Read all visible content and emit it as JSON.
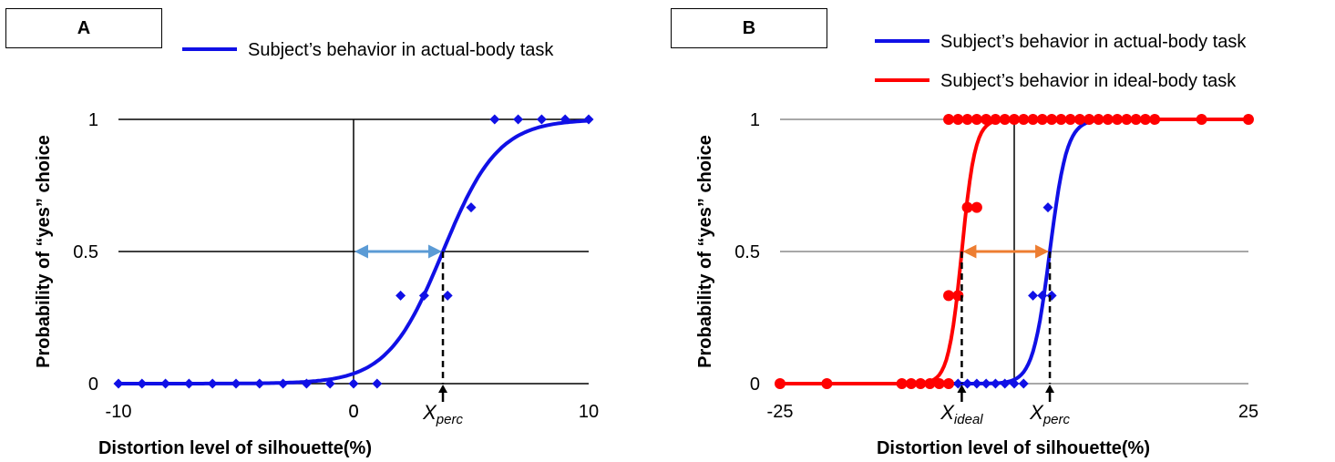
{
  "chart_data": [
    {
      "panel": "A",
      "type": "scatter",
      "ylabel": "Probability of “yes” choice",
      "xlabel": "Distortion level of silhouette(%)",
      "xlim": [
        -10,
        10
      ],
      "ylim": [
        0,
        1
      ],
      "x_ticks": [
        "-10",
        "0",
        "10"
      ],
      "y_ticks": [
        "0",
        "0.5",
        "1"
      ],
      "grid": true,
      "legend_position": "top",
      "series": [
        {
          "name": "Subject’s behavior in actual-body task",
          "color": "#1010e6",
          "marker": "diamond",
          "points": [
            [
              -10,
              0
            ],
            [
              -9,
              0
            ],
            [
              -8,
              0
            ],
            [
              -7,
              0
            ],
            [
              -6,
              0
            ],
            [
              -5,
              0
            ],
            [
              -4,
              0
            ],
            [
              -3,
              0
            ],
            [
              -2,
              0
            ],
            [
              -1,
              0
            ],
            [
              0,
              0
            ],
            [
              1,
              0
            ],
            [
              2,
              0.333
            ],
            [
              3,
              0.333
            ],
            [
              4,
              0.333
            ],
            [
              5,
              0.667
            ],
            [
              6,
              1
            ],
            [
              7,
              1
            ],
            [
              8,
              1
            ],
            [
              9,
              1
            ],
            [
              10,
              1
            ]
          ],
          "fit": {
            "center": 3.8,
            "slope": 0.85
          }
        }
      ],
      "annotations": {
        "arrow": {
          "from": 0,
          "to": 3.8,
          "y": 0.5,
          "color": "#5b9bd5"
        },
        "marker_label": {
          "base": "X",
          "sub": "perc",
          "x": 3.8
        }
      }
    },
    {
      "panel": "B",
      "type": "scatter",
      "ylabel": "Probability of “yes” choice",
      "xlabel": "Distortion level of silhouette(%)",
      "xlim": [
        -25,
        25
      ],
      "ylim": [
        0,
        1
      ],
      "x_ticks": [
        "-25",
        "25"
      ],
      "y_ticks": [
        "0",
        "0.5",
        "1"
      ],
      "grid": true,
      "legend_position": "top",
      "series": [
        {
          "name": "Subject’s behavior in actual-body task",
          "color": "#1010e6",
          "marker": "diamond",
          "points": [
            [
              -7,
              0
            ],
            [
              -6,
              0
            ],
            [
              -5,
              0
            ],
            [
              -4,
              0
            ],
            [
              -3,
              0
            ],
            [
              -2,
              0
            ],
            [
              -1,
              0
            ],
            [
              0,
              0
            ],
            [
              1,
              0
            ],
            [
              2,
              0.333
            ],
            [
              3,
              0.333
            ],
            [
              4,
              0.333
            ],
            [
              3.6,
              0.667
            ],
            [
              2,
              1
            ],
            [
              3,
              1
            ],
            [
              4,
              1
            ],
            [
              5,
              1
            ],
            [
              6,
              1
            ],
            [
              7,
              1
            ],
            [
              8,
              1
            ],
            [
              9,
              1
            ],
            [
              10,
              1
            ]
          ],
          "fit": {
            "center": 3.8,
            "slope": 1.1
          }
        },
        {
          "name": "Subject’s behavior in ideal-body task",
          "color": "#ff0000",
          "marker": "circle",
          "points": [
            [
              -25,
              0
            ],
            [
              -20,
              0
            ],
            [
              -12,
              0
            ],
            [
              -11,
              0
            ],
            [
              -10,
              0
            ],
            [
              -9,
              0
            ],
            [
              -8,
              0
            ],
            [
              -7,
              0
            ],
            [
              -7,
              0.333
            ],
            [
              -6,
              0.333
            ],
            [
              -5,
              0.667
            ],
            [
              -4,
              0.667
            ],
            [
              -7,
              1
            ],
            [
              -6,
              1
            ],
            [
              -5,
              1
            ],
            [
              -4,
              1
            ],
            [
              -3,
              1
            ],
            [
              -2,
              1
            ],
            [
              -1,
              1
            ],
            [
              0,
              1
            ],
            [
              1,
              1
            ],
            [
              2,
              1
            ],
            [
              3,
              1
            ],
            [
              4,
              1
            ],
            [
              5,
              1
            ],
            [
              6,
              1
            ],
            [
              7,
              1
            ],
            [
              8,
              1
            ],
            [
              9,
              1
            ],
            [
              10,
              1
            ],
            [
              11,
              1
            ],
            [
              12,
              1
            ],
            [
              13,
              1
            ],
            [
              14,
              1
            ],
            [
              15,
              1
            ],
            [
              20,
              1
            ],
            [
              25,
              1
            ]
          ],
          "fit": {
            "center": -5.6,
            "slope": 1.4
          }
        }
      ],
      "annotations": {
        "arrow": {
          "from": -5.6,
          "to": 3.8,
          "y": 0.5,
          "color": "#ed7d31"
        },
        "marker_labels": [
          {
            "base": "X",
            "sub": "ideal",
            "x": -5.6
          },
          {
            "base": "X",
            "sub": "perc",
            "x": 3.8
          }
        ],
        "reference_x": 0
      }
    }
  ]
}
